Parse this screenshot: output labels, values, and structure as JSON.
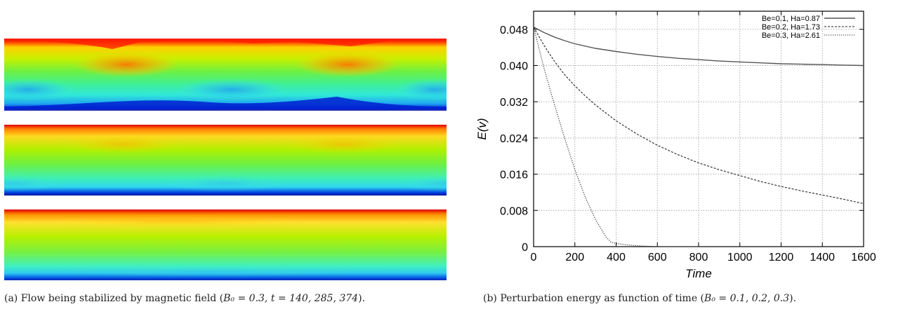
{
  "panel_a": {
    "caption_prefix": "(a) Flow being stabilized by magnetic field (",
    "caption_math": "B₀ = 0.3, t = 140, 285, 374",
    "caption_suffix": ")."
  },
  "panel_b": {
    "caption_prefix": "(b) Perturbation energy as function of time (",
    "caption_math": "B₀ = 0.1, 0.2, 0.3",
    "caption_suffix": ")."
  },
  "chart_data": {
    "type": "line",
    "xlabel": "Time",
    "ylabel": "E(v)",
    "xlim": [
      0,
      1600
    ],
    "ylim": [
      0,
      0.052
    ],
    "x_ticks": [
      0,
      200,
      400,
      600,
      800,
      1000,
      1200,
      1400,
      1600
    ],
    "x_tick_labels": [
      "0",
      "200",
      "400",
      "600",
      "800",
      "1000",
      "1200",
      "1400",
      "1600"
    ],
    "y_ticks": [
      0,
      0.008,
      0.016,
      0.024,
      0.032,
      0.04,
      0.048
    ],
    "y_tick_labels": [
      "0",
      "0.008",
      "0.016",
      "0.024",
      "0.032",
      "0.040",
      "0.048"
    ],
    "grid": true,
    "legend_position": "top-right",
    "series": [
      {
        "name": "Be=0.1, Ha=0.87",
        "dash": "solid",
        "x": [
          0,
          50,
          100,
          150,
          200,
          300,
          400,
          500,
          600,
          700,
          800,
          900,
          1000,
          1100,
          1200,
          1300,
          1400,
          1500,
          1600
        ],
        "y": [
          0.0485,
          0.0473,
          0.0463,
          0.0455,
          0.0448,
          0.0438,
          0.0431,
          0.0425,
          0.042,
          0.0416,
          0.0413,
          0.041,
          0.0408,
          0.0406,
          0.0404,
          0.0403,
          0.0402,
          0.0401,
          0.04
        ]
      },
      {
        "name": "Be=0.2, Ha=1.73",
        "dash": "dashed",
        "x": [
          0,
          50,
          100,
          150,
          200,
          250,
          300,
          400,
          500,
          600,
          700,
          800,
          900,
          1000,
          1100,
          1200,
          1300,
          1400,
          1500,
          1600
        ],
        "y": [
          0.0485,
          0.0445,
          0.041,
          0.038,
          0.0355,
          0.0333,
          0.0313,
          0.0278,
          0.0249,
          0.0224,
          0.0203,
          0.0185,
          0.017,
          0.0157,
          0.0144,
          0.0133,
          0.0123,
          0.0114,
          0.0105,
          0.0095
        ]
      },
      {
        "name": "Be=0.3, Ha=2.61",
        "dash": "dotted",
        "x": [
          0,
          25,
          50,
          75,
          100,
          150,
          200,
          250,
          300,
          350,
          375,
          400,
          450,
          500,
          550,
          600,
          700,
          800
        ],
        "y": [
          0.0485,
          0.044,
          0.0395,
          0.0355,
          0.0315,
          0.024,
          0.017,
          0.011,
          0.006,
          0.0022,
          0.001,
          0.0007,
          0.0004,
          0.0002,
          0.0001,
          0.0,
          0.0,
          0.0
        ]
      }
    ]
  }
}
